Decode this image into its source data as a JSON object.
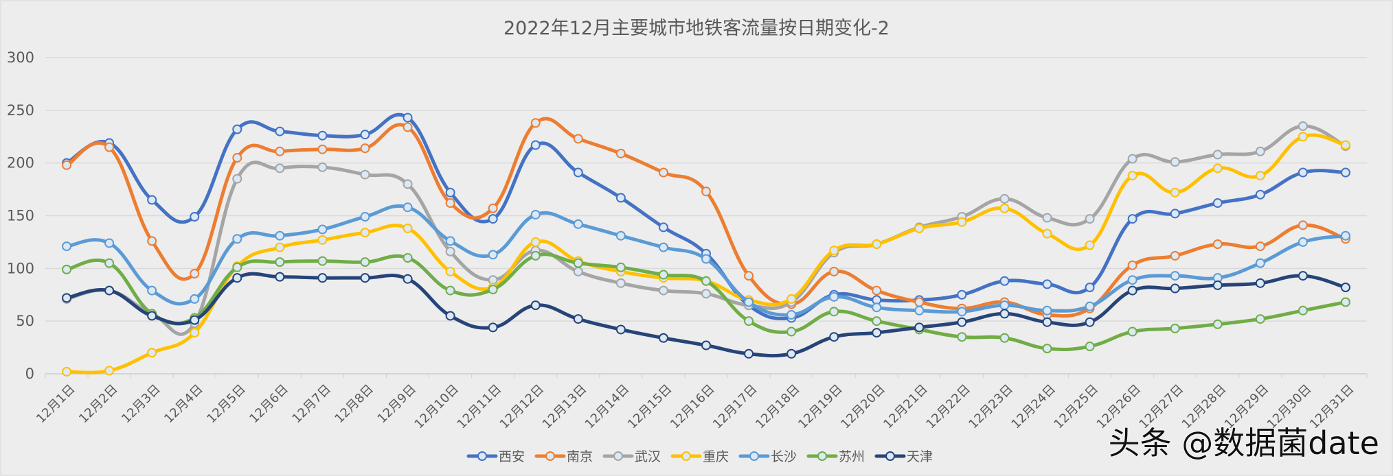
{
  "chart_data": {
    "type": "line",
    "title": "2022年12月主要城市地铁客流量按日期变化-2",
    "xlabel": "",
    "ylabel": "",
    "ylim": [
      0,
      300
    ],
    "yticks": [
      "0",
      "50",
      "100",
      "150",
      "200",
      "250",
      "300"
    ],
    "grid": true,
    "legend_position": "bottom",
    "categories": [
      "12月1日",
      "12月2日",
      "12月3日",
      "12月4日",
      "12月5日",
      "12月6日",
      "12月7日",
      "12月8日",
      "12月9日",
      "12月10日",
      "12月11日",
      "12月12日",
      "12月13日",
      "12月14日",
      "12月15日",
      "12月16日",
      "12月17日",
      "12月18日",
      "12月19日",
      "12月20日",
      "12月21日",
      "12月22日",
      "12月23日",
      "12月24日",
      "12月25日",
      "12月26日",
      "12月27日",
      "12月28日",
      "12月29日",
      "12月30日",
      "12月31日"
    ],
    "series": [
      {
        "name": "西安",
        "color": "#4472C4",
        "values": [
          200,
          219,
          165,
          149,
          232,
          230,
          226,
          227,
          243,
          172,
          147,
          217,
          191,
          167,
          139,
          114,
          65,
          53,
          75,
          70,
          70,
          75,
          88,
          85,
          82,
          147,
          152,
          162,
          170,
          191,
          191
        ]
      },
      {
        "name": "南京",
        "color": "#ED7D31",
        "values": [
          198,
          215,
          126,
          95,
          205,
          211,
          213,
          214,
          234,
          162,
          157,
          238,
          223,
          209,
          191,
          173,
          93,
          66,
          97,
          79,
          68,
          62,
          68,
          56,
          62,
          103,
          112,
          123,
          121,
          141,
          128
        ]
      },
      {
        "name": "武汉",
        "color": "#A5A5A5",
        "values": [
          71,
          79,
          57,
          48,
          185,
          195,
          196,
          189,
          180,
          116,
          89,
          117,
          97,
          86,
          79,
          76,
          65,
          68,
          115,
          123,
          139,
          149,
          166,
          148,
          147,
          204,
          201,
          208,
          211,
          235,
          216
        ]
      },
      {
        "name": "重庆",
        "color": "#FFC000",
        "values": [
          2,
          3,
          20,
          39,
          102,
          120,
          127,
          134,
          138,
          97,
          82,
          125,
          107,
          97,
          91,
          88,
          70,
          71,
          117,
          123,
          138,
          144,
          157,
          133,
          122,
          188,
          172,
          195,
          188,
          225,
          217
        ]
      },
      {
        "name": "长沙",
        "color": "#5B9BD5",
        "values": [
          121,
          124,
          79,
          71,
          128,
          131,
          137,
          149,
          158,
          126,
          113,
          151,
          142,
          131,
          120,
          109,
          68,
          56,
          73,
          63,
          60,
          59,
          65,
          60,
          64,
          89,
          93,
          91,
          105,
          125,
          131
        ]
      },
      {
        "name": "苏州",
        "color": "#70AD47",
        "values": [
          99,
          105,
          57,
          53,
          101,
          106,
          107,
          106,
          110,
          79,
          80,
          112,
          105,
          101,
          94,
          88,
          50,
          40,
          59,
          50,
          42,
          35,
          34,
          24,
          26,
          40,
          43,
          47,
          52,
          60,
          68
        ]
      },
      {
        "name": "天津",
        "color": "#264478",
        "values": [
          72,
          79,
          55,
          51,
          91,
          92,
          91,
          91,
          90,
          55,
          44,
          65,
          52,
          42,
          34,
          27,
          19,
          19,
          35,
          39,
          44,
          49,
          57,
          49,
          49,
          79,
          81,
          84,
          86,
          93,
          82
        ]
      }
    ]
  },
  "watermark": "头条 @数据菌date"
}
